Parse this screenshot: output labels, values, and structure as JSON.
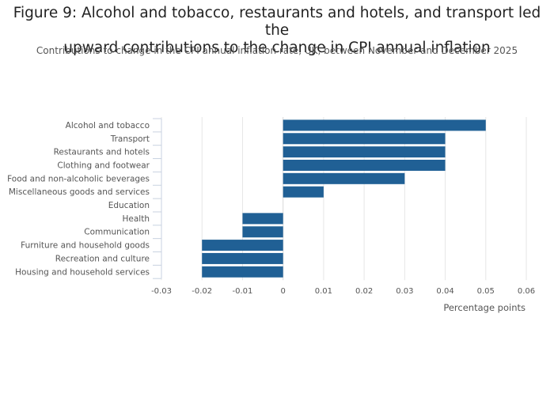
{
  "title_line1": "Figure 9: Alcohol and tobacco, restaurants and hotels, and transport led the",
  "title_line2": "upward contributions to the change in CPI annual inflation",
  "subtitle": "Contributions to change in the CPI annual inflation rate, UK, between November and December 2025",
  "colors": {
    "bar": "#206095",
    "grid": "#e6e6e6",
    "text": "#555555"
  },
  "chart_data": {
    "type": "bar",
    "orientation": "horizontal",
    "categories": [
      "Alcohol and tobacco",
      "Transport",
      "Restaurants and hotels",
      "Clothing and footwear",
      "Food and non-alcoholic beverages",
      "Miscellaneous goods and services",
      "Education",
      "Health",
      "Communication",
      "Furniture and household goods",
      "Recreation and culture",
      "Housing and household services"
    ],
    "values": [
      0.05,
      0.04,
      0.04,
      0.04,
      0.03,
      0.01,
      0,
      -0.01,
      -0.01,
      -0.02,
      -0.02,
      -0.02
    ],
    "xlabel": "Percentage points",
    "ylabel": "",
    "xlim": [
      -0.03,
      0.06
    ],
    "xticks": [
      -0.03,
      -0.02,
      -0.01,
      0,
      0.01,
      0.02,
      0.03,
      0.04,
      0.05,
      0.06
    ],
    "xtick_labels": [
      "-0.03",
      "-0.02",
      "-0.01",
      "0",
      "0.01",
      "0.02",
      "0.03",
      "0.04",
      "0.05",
      "0.06"
    ],
    "grid": true,
    "legend": "none"
  }
}
